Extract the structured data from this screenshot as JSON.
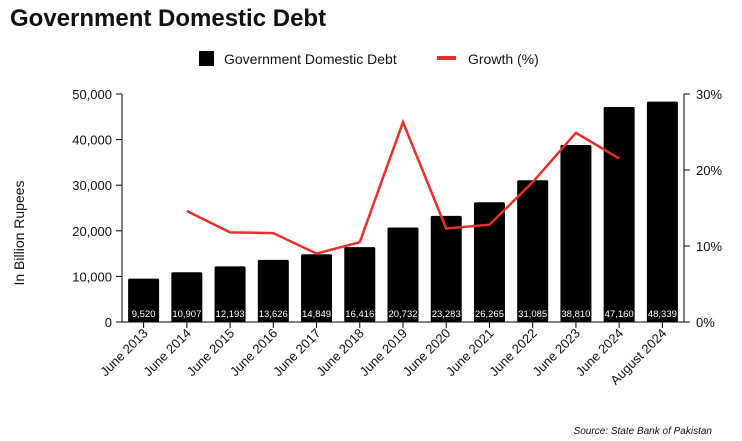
{
  "chart_data": {
    "type": "bar",
    "title": "Government Domestic Debt",
    "ylabel": "In Billion Rupees",
    "y2label": "",
    "categories": [
      "June 2013",
      "June 2014",
      "June 2015",
      "June 2016",
      "June 2017",
      "June 2018",
      "June 2019",
      "June 2020",
      "June 2021",
      "June 2022",
      "June 2023",
      "June 2024",
      "August 2024"
    ],
    "series": [
      {
        "name": "Government Domestic Debt",
        "type": "bar",
        "axis": "left",
        "color": "#000000",
        "values": [
          9520,
          10907,
          12193,
          13626,
          14849,
          16416,
          20732,
          23283,
          26265,
          31085,
          38810,
          47160,
          48339
        ],
        "labels": [
          "9,520",
          "10,907",
          "12,193",
          "13,626",
          "14,849",
          "16,416",
          "20,732",
          "23,283",
          "26,265",
          "31,085",
          "38,810",
          "47,160",
          "48,339"
        ]
      },
      {
        "name": "Growth (%)",
        "type": "line",
        "axis": "right",
        "color": "#e8302a",
        "values": [
          null,
          14.6,
          11.8,
          11.7,
          9.0,
          10.5,
          26.3,
          12.3,
          12.8,
          18.4,
          24.9,
          21.5,
          null
        ]
      }
    ],
    "ylim": [
      0,
      50000
    ],
    "yticks": [
      0,
      10000,
      20000,
      30000,
      40000,
      50000
    ],
    "ytick_labels": [
      "0",
      "10,000",
      "20,000",
      "30,000",
      "40,000",
      "50,000"
    ],
    "y2lim": [
      0,
      30
    ],
    "y2ticks": [
      0,
      10,
      20,
      30
    ],
    "y2tick_labels": [
      "0%",
      "10%",
      "20%",
      "30%"
    ],
    "legend": "top-center",
    "grid": false,
    "source": "Source: State Bank of Pakistan"
  }
}
